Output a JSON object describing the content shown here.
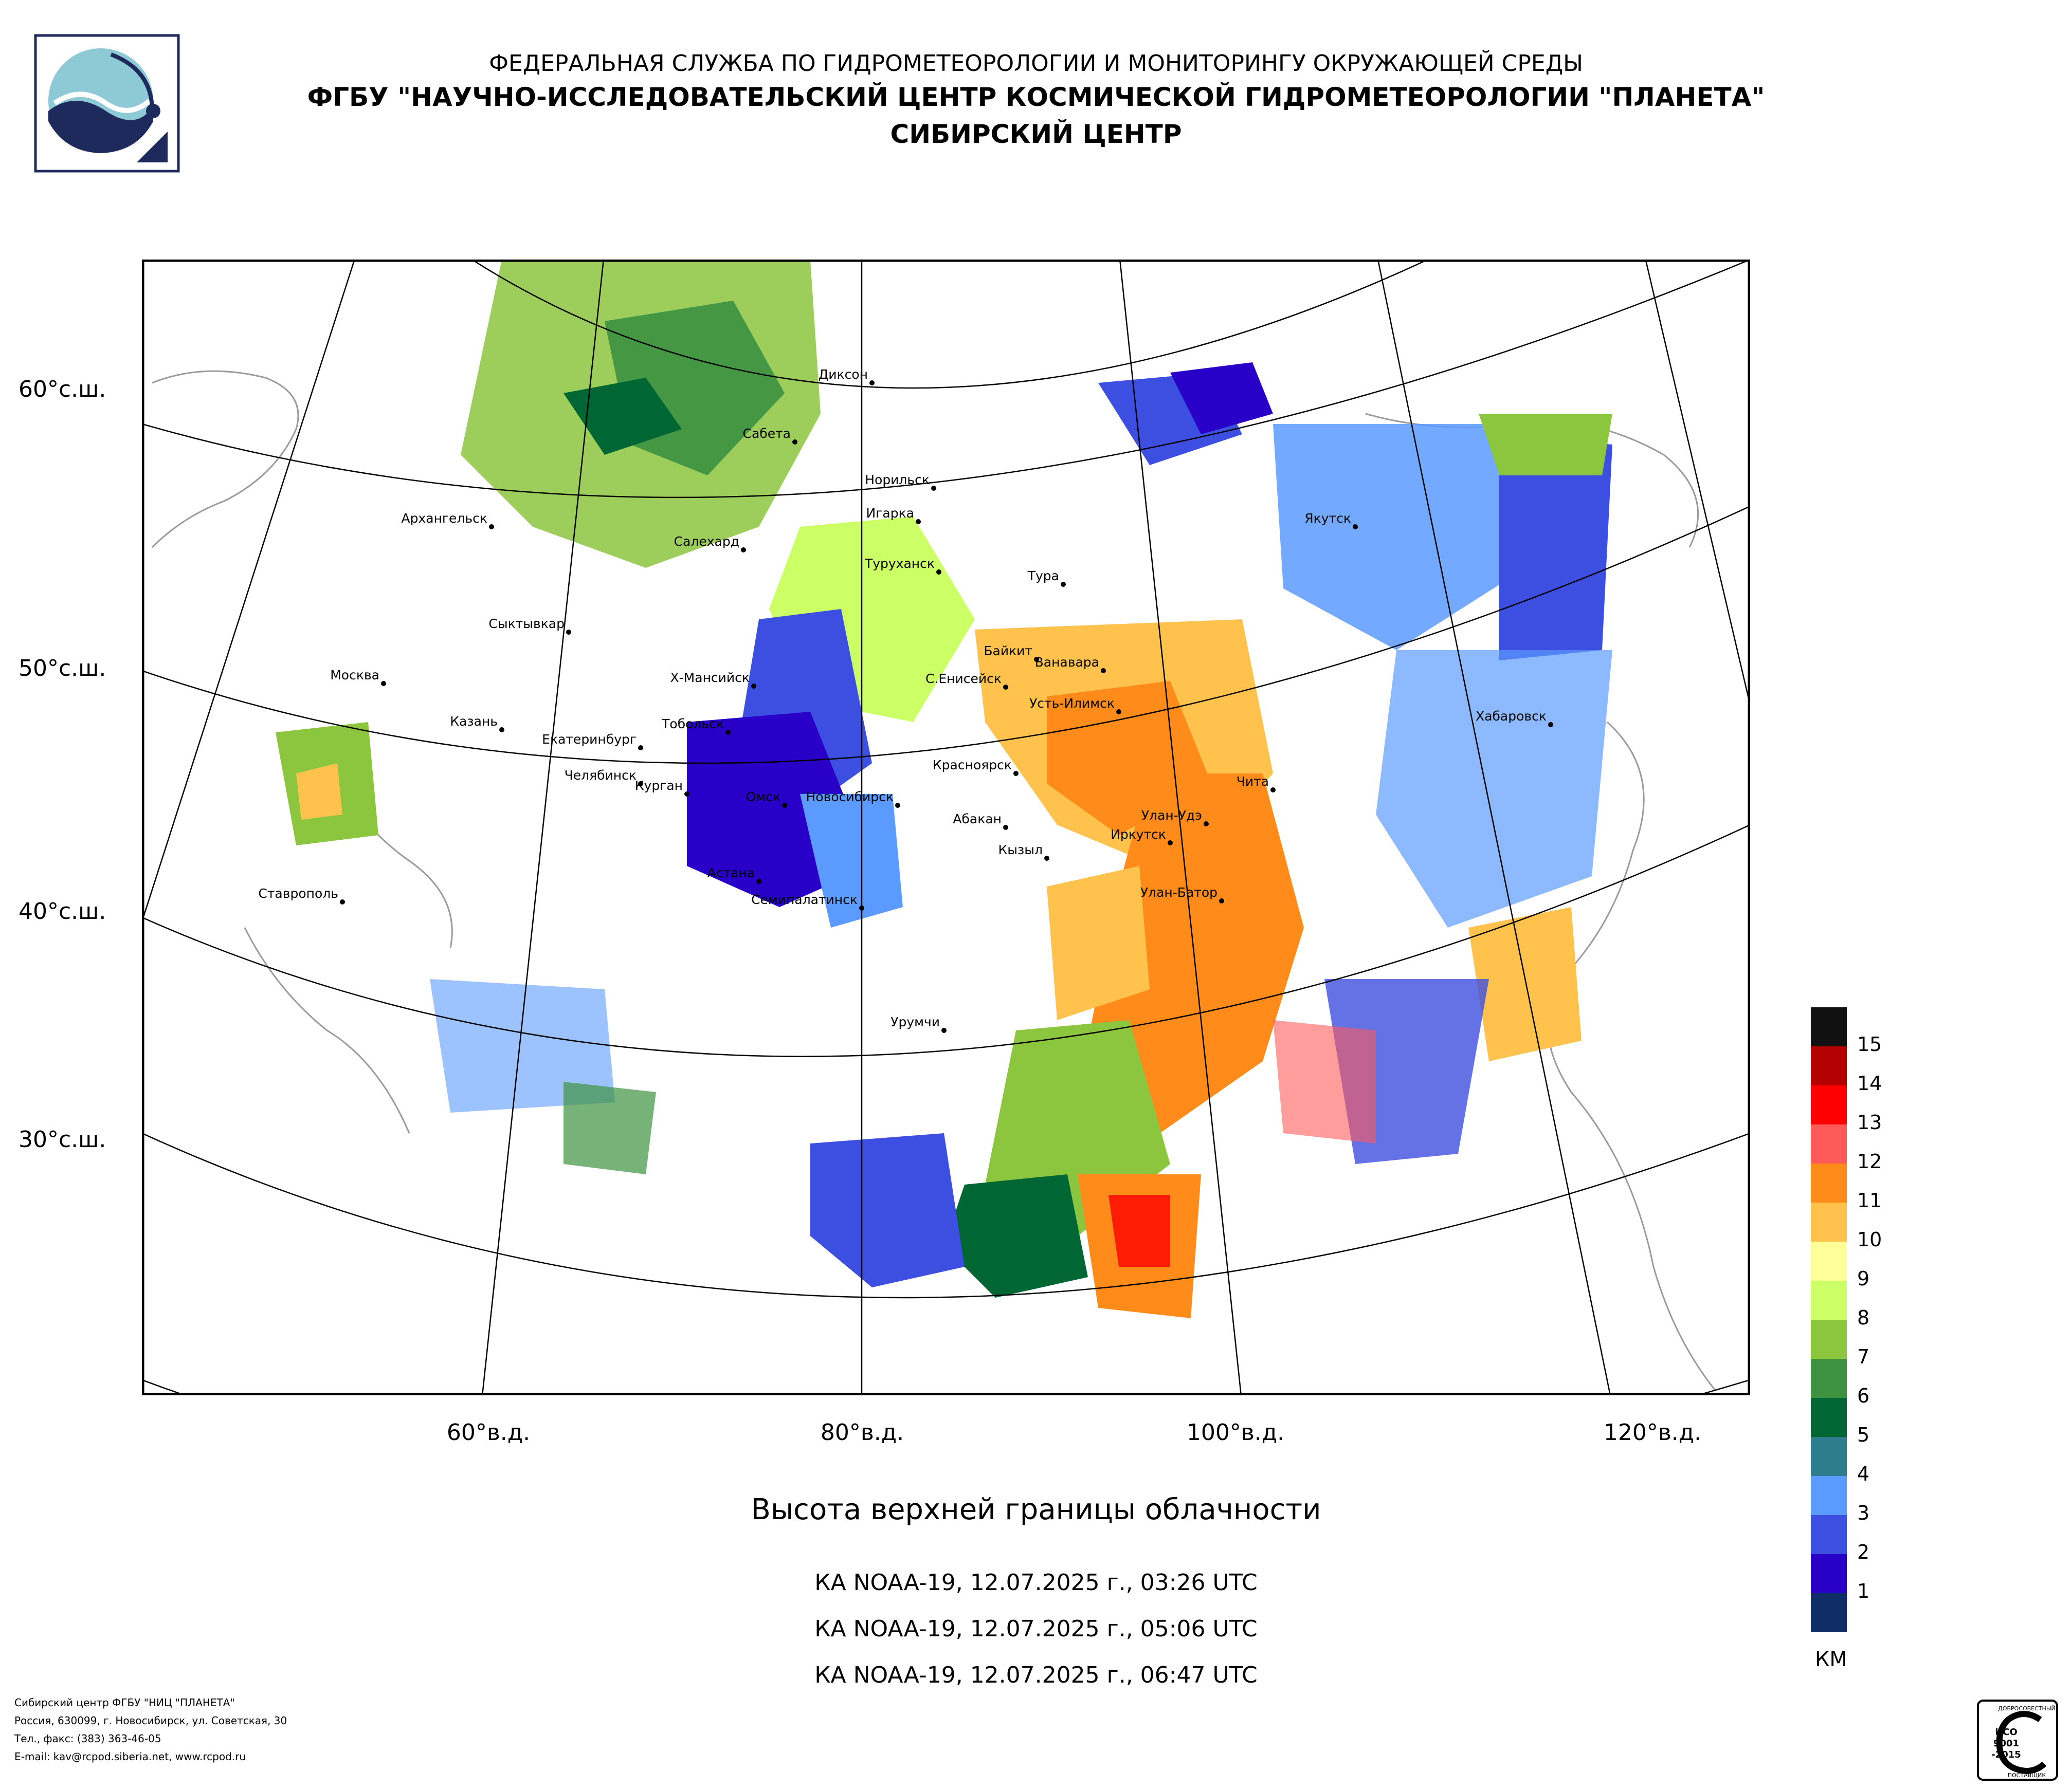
{
  "header": {
    "line1": "ФЕДЕРАЛЬНАЯ СЛУЖБА ПО ГИДРОМЕТЕОРОЛОГИИ И МОНИТОРИНГУ ОКРУЖАЮЩЕЙ СРЕДЫ",
    "line2": "ФГБУ \"НАУЧНО-ИССЛЕДОВАТЕЛЬСКИЙ ЦЕНТР КОСМИЧЕСКОЙ ГИДРОМЕТЕОРОЛОГИИ \"ПЛАНЕТА\"",
    "line3": "СИБИРСКИЙ ЦЕНТР"
  },
  "map": {
    "lat_labels": [
      "60°с.ш.",
      "50°с.ш.",
      "40°с.ш.",
      "30°с.ш."
    ],
    "lon_labels": [
      "60°в.д.",
      "80°в.д.",
      "100°в.д.",
      "120°в.д."
    ],
    "cities": [
      "Диксон",
      "Сабета",
      "Норильск",
      "Игарка",
      "Архангельск",
      "Салехард",
      "Туруханск",
      "Якутск",
      "Тура",
      "Сыктывкар",
      "Байкит",
      "Ванавара",
      "Москва",
      "Х-Мансийск",
      "С.Енисейск",
      "Усть-Илимск",
      "Казань",
      "Тобольск",
      "Хабаровск",
      "Екатеринбург",
      "Красноярск",
      "Челябинск",
      "Курган",
      "Чита",
      "Омск",
      "Новосибирск",
      "Абакан",
      "Улан-Удэ",
      "Иркутск",
      "Кызыл",
      "Астана",
      "Ставрополь",
      "Улан-Батор",
      "Семипалатинск",
      "Урумчи"
    ]
  },
  "subtitle": "Высота верхней границы облачности",
  "passes": [
    "КА NOAA-19, 12.07.2025 г., 03:26 UTC",
    "КА NOAA-19, 12.07.2025 г., 05:06 UTC",
    "КА NOAA-19, 12.07.2025 г., 06:47 UTC"
  ],
  "legend": {
    "unit": "КМ",
    "labels": [
      "15",
      "14",
      "13",
      "12",
      "11",
      "10",
      "9",
      "8",
      "7",
      "6",
      "5",
      "4",
      "3",
      "2",
      "1"
    ],
    "colors": [
      "#111111",
      "#b30000",
      "#ff0000",
      "#ff5a5a",
      "#ff8c1a",
      "#ffc34d",
      "#ffff99",
      "#ccff66",
      "#8cc63f",
      "#3d9140",
      "#006633",
      "#2e7d8c",
      "#5b9bff",
      "#3d4fe0",
      "#2800c8",
      "#0f2d66"
    ]
  },
  "footer": {
    "line1": "Сибирский центр ФГБУ \"НИЦ \"ПЛАНЕТА\"",
    "line2": "Россия, 630099, г. Новосибирск, ул. Советская, 30",
    "line3": "Тел., факс: (383) 363-46-05",
    "line4": "E-mail: kav@rcpod.siberia.net, www.rcpod.ru"
  },
  "certificate": {
    "top": "ДОБРОСОВЕСТНЫЙ",
    "line1": "ИСО",
    "line2": "9001",
    "line3": "-2015",
    "bottom": "ПОСТАВЩИК"
  }
}
